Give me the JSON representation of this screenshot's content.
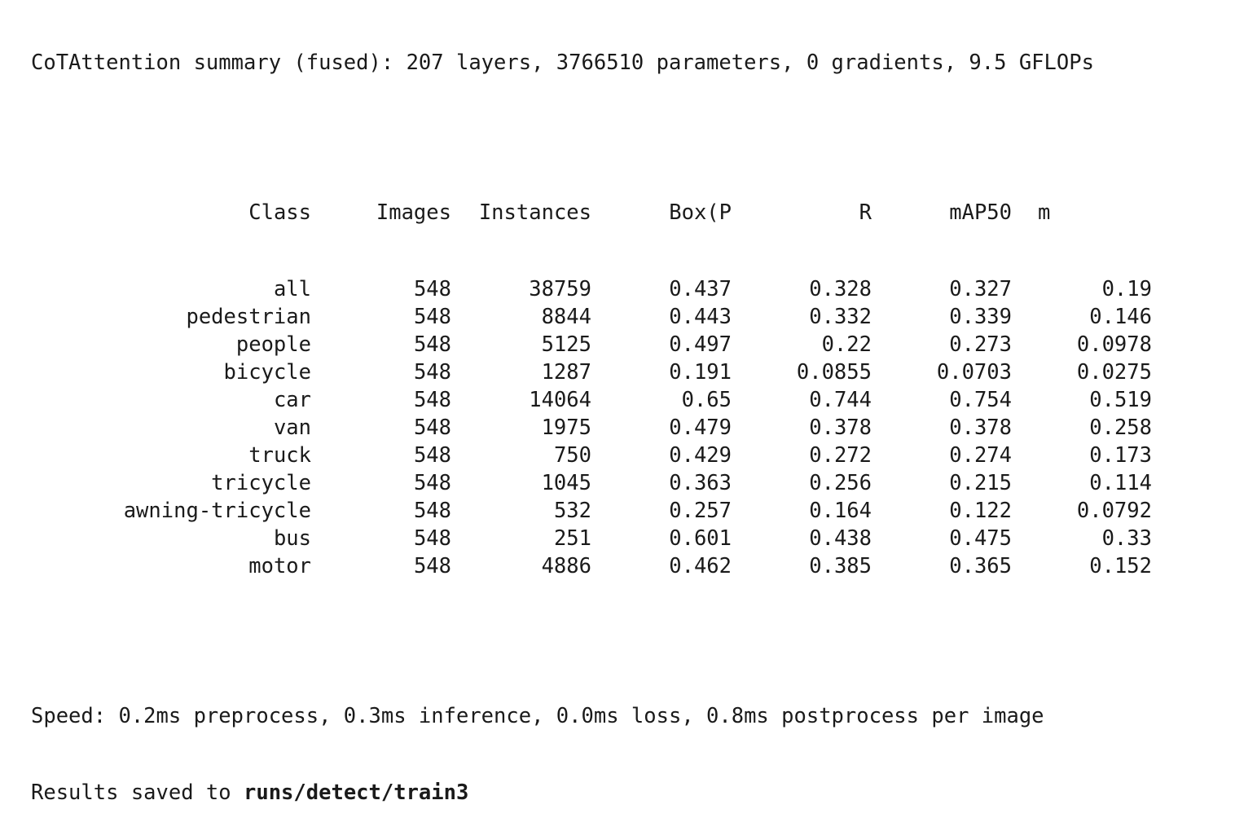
{
  "summary": "CoTAttention summary (fused): 207 layers, 3766510 parameters, 0 gradients, 9.5 GFLOPs",
  "table": {
    "headers": {
      "class": "Class",
      "images": "Images",
      "instances": "Instances",
      "box_p": "Box(P",
      "r": "R",
      "map50": "mAP50",
      "map": "m"
    },
    "rows": [
      {
        "class": "all",
        "images": "548",
        "instances": "38759",
        "p": "0.437",
        "r": "0.328",
        "map50": "0.327",
        "map": "0.19"
      },
      {
        "class": "pedestrian",
        "images": "548",
        "instances": "8844",
        "p": "0.443",
        "r": "0.332",
        "map50": "0.339",
        "map": "0.146"
      },
      {
        "class": "people",
        "images": "548",
        "instances": "5125",
        "p": "0.497",
        "r": "0.22",
        "map50": "0.273",
        "map": "0.0978"
      },
      {
        "class": "bicycle",
        "images": "548",
        "instances": "1287",
        "p": "0.191",
        "r": "0.0855",
        "map50": "0.0703",
        "map": "0.0275"
      },
      {
        "class": "car",
        "images": "548",
        "instances": "14064",
        "p": "0.65",
        "r": "0.744",
        "map50": "0.754",
        "map": "0.519"
      },
      {
        "class": "van",
        "images": "548",
        "instances": "1975",
        "p": "0.479",
        "r": "0.378",
        "map50": "0.378",
        "map": "0.258"
      },
      {
        "class": "truck",
        "images": "548",
        "instances": "750",
        "p": "0.429",
        "r": "0.272",
        "map50": "0.274",
        "map": "0.173"
      },
      {
        "class": "tricycle",
        "images": "548",
        "instances": "1045",
        "p": "0.363",
        "r": "0.256",
        "map50": "0.215",
        "map": "0.114"
      },
      {
        "class": "awning-tricycle",
        "images": "548",
        "instances": "532",
        "p": "0.257",
        "r": "0.164",
        "map50": "0.122",
        "map": "0.0792"
      },
      {
        "class": "bus",
        "images": "548",
        "instances": "251",
        "p": "0.601",
        "r": "0.438",
        "map50": "0.475",
        "map": "0.33"
      },
      {
        "class": "motor",
        "images": "548",
        "instances": "4886",
        "p": "0.462",
        "r": "0.385",
        "map50": "0.365",
        "map": "0.152"
      }
    ]
  },
  "speed": "Speed: 0.2ms preprocess, 0.3ms inference, 0.0ms loss, 0.8ms postprocess per image",
  "results": {
    "prefix": "Results saved to ",
    "path": "runs/detect/train3"
  }
}
